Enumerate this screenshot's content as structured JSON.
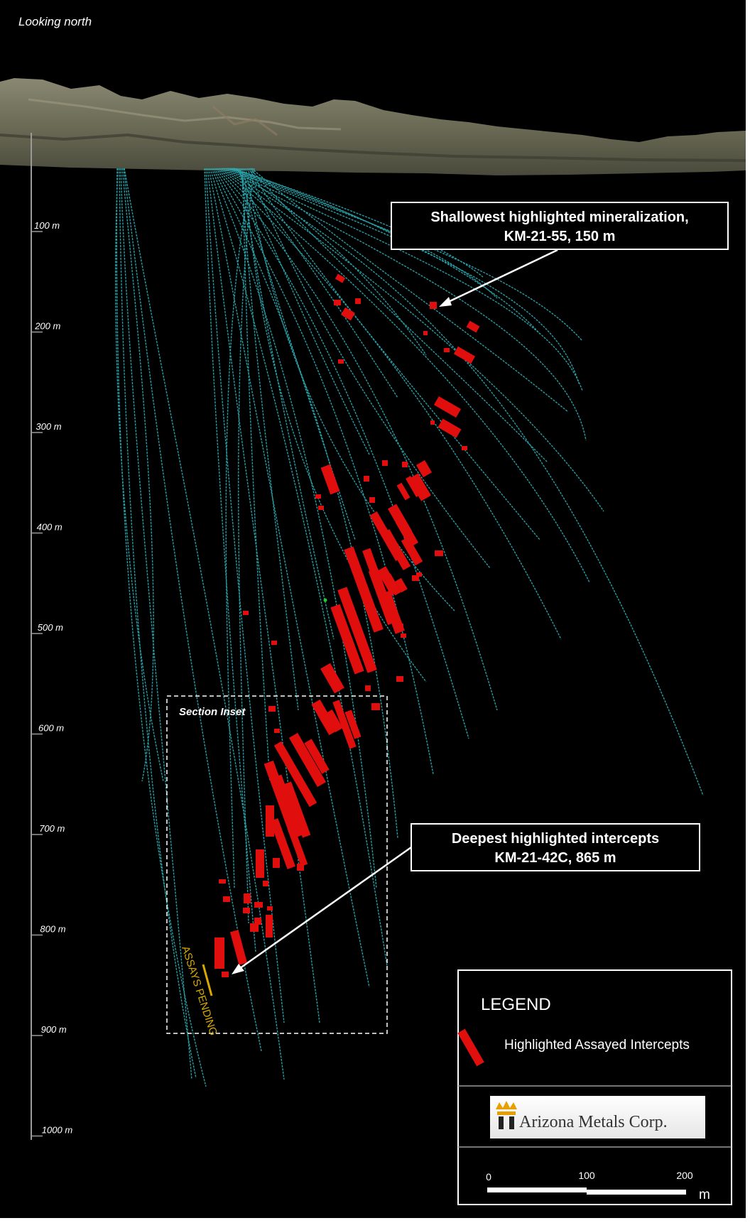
{
  "header": {
    "view_label": "Looking north"
  },
  "depth_scale": {
    "labels": [
      "100 m",
      "200 m",
      "300 m",
      "400 m",
      "500 m",
      "600 m",
      "700 m",
      "800 m",
      "900 m",
      "1000 m"
    ]
  },
  "callouts": {
    "shallowest": {
      "line1": "Shallowest highlighted mineralization,",
      "line2": "KM-21-55, 150 m"
    },
    "deepest": {
      "line1": "Deepest highlighted intercepts",
      "line2": "KM-21-42C, 865 m"
    }
  },
  "section_inset": {
    "label": "Section Inset"
  },
  "assays_pending": {
    "label": "ASSAYS PENDING"
  },
  "legend": {
    "title": "LEGEND",
    "item_label": "Highlighted Assayed Intercepts",
    "logo_text": "Arizona Metals Corp.",
    "scalebar": {
      "ticks": [
        "0",
        "100",
        "200"
      ],
      "unit": "m"
    }
  },
  "colors": {
    "background": "#000000",
    "drill_trace": "#2fb8bf",
    "intercept": "#e10e0e",
    "assays_pending": "#d8a800",
    "frame": "#ffffff"
  }
}
